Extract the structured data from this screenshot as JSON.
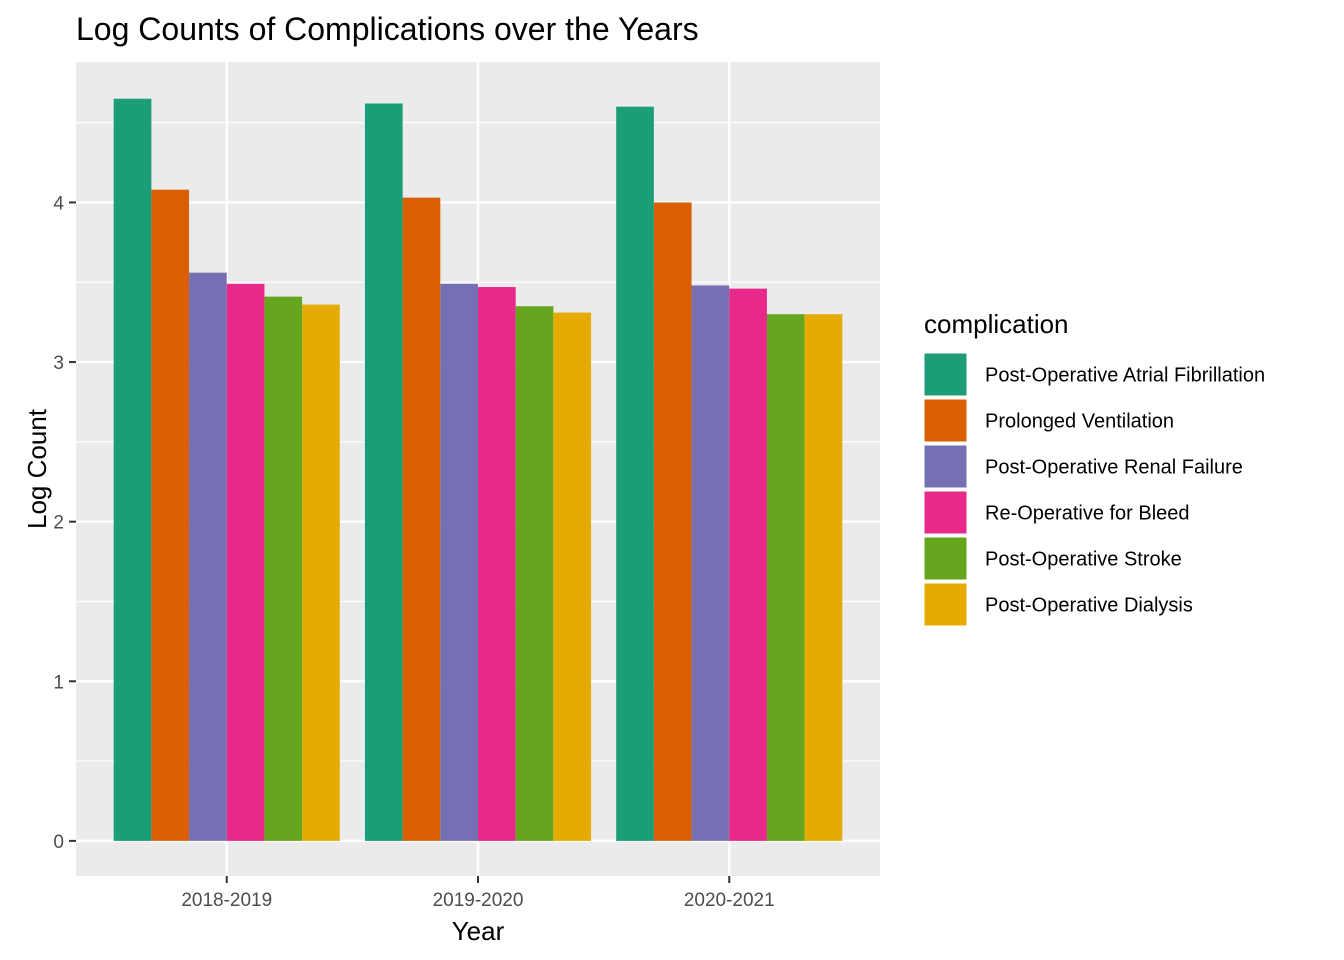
{
  "chart_data": {
    "type": "bar",
    "title": "Log Counts of Complications over the Years",
    "xlabel": "Year",
    "ylabel": "Log Count",
    "categories": [
      "2018-2019",
      "2019-2020",
      "2020-2021"
    ],
    "ylim": [
      -0.22,
      4.88
    ],
    "yticks": [
      0,
      1,
      2,
      3,
      4
    ],
    "grid": true,
    "legend": {
      "title": "complication",
      "position": "right"
    },
    "series": [
      {
        "name": "Post-Operative Atrial Fibrillation",
        "color": "#1b9e77",
        "values": [
          4.65,
          4.62,
          4.6
        ]
      },
      {
        "name": "Prolonged Ventilation",
        "color": "#d95f02",
        "values": [
          4.08,
          4.03,
          4.0
        ]
      },
      {
        "name": "Post-Operative Renal Failure",
        "color": "#7570b3",
        "values": [
          3.56,
          3.49,
          3.48
        ]
      },
      {
        "name": "Re-Operative for Bleed",
        "color": "#e7298a",
        "values": [
          3.49,
          3.47,
          3.46
        ]
      },
      {
        "name": "Post-Operative Stroke",
        "color": "#66a61e",
        "values": [
          3.41,
          3.35,
          3.3
        ]
      },
      {
        "name": "Post-Operative Dialysis",
        "color": "#e6ab02",
        "values": [
          3.36,
          3.31,
          3.3
        ]
      }
    ]
  }
}
